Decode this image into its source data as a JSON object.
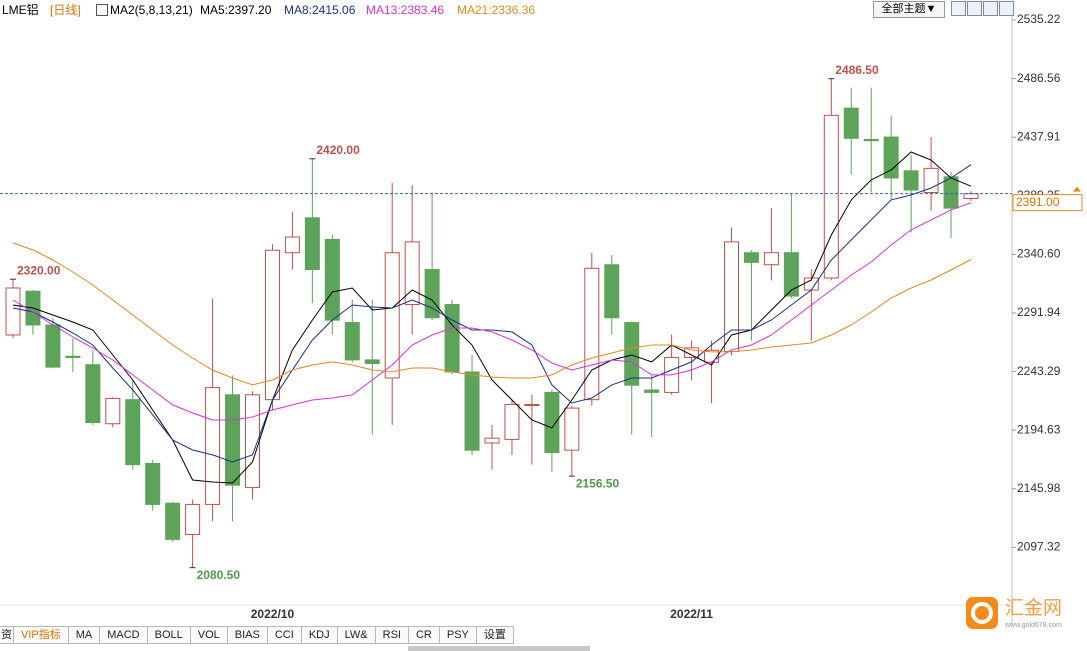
{
  "header": {
    "symbol": "LME铝",
    "period": "[日线]",
    "indicator": "MA2(5,8,13,21)",
    "theme_button": "全部主题▼"
  },
  "tabs": [
    "资",
    "VIP指标",
    "MA",
    "MACD",
    "BOLL",
    "VOL",
    "BIAS",
    "CCI",
    "KDJ",
    "LW&",
    "RSI",
    "CR",
    "PSY",
    "设置"
  ],
  "watermark": {
    "brand": "汇金网",
    "url": "www.gold678.com"
  },
  "chart_data": {
    "type": "candlestick",
    "up_color": "#c0504d",
    "down_color": "#5ea35a",
    "categories": [
      null,
      null,
      null,
      null,
      null,
      null,
      null,
      null,
      null,
      null,
      null,
      null,
      null,
      "2022/10",
      null,
      null,
      null,
      null,
      null,
      null,
      null,
      null,
      null,
      null,
      null,
      null,
      null,
      null,
      null,
      null,
      null,
      null,
      null,
      null,
      "2022/11",
      null,
      null,
      null,
      null,
      null,
      null,
      null,
      null,
      null,
      null,
      null,
      null,
      null,
      null
    ],
    "open": [
      2273.7,
      2310,
      2282,
      2256,
      2249,
      2200,
      2220,
      2167,
      2134,
      2108,
      2133,
      2224,
      2147,
      2220,
      2342,
      2371,
      2353,
      2284,
      2253,
      2238,
      2299,
      2328,
      2299,
      2243,
      2184,
      2187,
      2216,
      2226,
      2178,
      2220,
      2332,
      2284,
      2228,
      2226,
      2255,
      2251,
      2260,
      2342,
      2332,
      2342,
      2311,
      2321,
      2462,
      2436,
      2438,
      2410,
      2392,
      2405,
      2387
    ],
    "high": [
      2320,
      2311,
      2288,
      2271,
      2261,
      2222,
      2236,
      2170,
      2135,
      2137,
      2304,
      2240,
      2227,
      2349,
      2376,
      2420,
      2357,
      2303,
      2303,
      2400,
      2398,
      2392,
      2303,
      2257,
      2199,
      2220,
      2224,
      2228,
      2215,
      2342,
      2340,
      2285,
      2240,
      2274,
      2269,
      2269,
      2363,
      2344,
      2379,
      2391,
      2328,
      2486.5,
      2479,
      2479,
      2456,
      2423,
      2438,
      2409,
      2393
    ],
    "low": [
      2271,
      2274,
      2246,
      2243,
      2199,
      2197,
      2162,
      2128,
      2102,
      2080.5,
      2119,
      2119,
      2137,
      2211,
      2328,
      2300,
      2274,
      2251,
      2191,
      2199,
      2274,
      2286,
      2241,
      2174,
      2162,
      2174,
      2166,
      2160,
      2156.5,
      2215,
      2274,
      2191,
      2189,
      2224,
      2236,
      2217,
      2257,
      2269,
      2319,
      2304,
      2269,
      2319,
      2407,
      2392,
      2386,
      2359,
      2377,
      2354,
      2385
    ],
    "close": [
      2312.7,
      2282,
      2247,
      2255,
      2201,
      2221,
      2166,
      2133,
      2104,
      2133,
      2230,
      2149,
      2224,
      2344,
      2355,
      2328,
      2286,
      2253,
      2250,
      2342,
      2351,
      2288,
      2243,
      2178,
      2188,
      2216,
      2216,
      2176,
      2213,
      2329,
      2288,
      2232,
      2226,
      2255,
      2263,
      2261,
      2351,
      2334,
      2342,
      2306,
      2321,
      2456,
      2437,
      2435,
      2404,
      2394,
      2412,
      2379,
      2391
    ],
    "series": [
      {
        "name": "MA5:2397.20",
        "color": "#000000",
        "values": [
          2298.6,
          2296.1,
          2290.3,
          2284.5,
          2277.8,
          2257.1,
          2236.3,
          2211.4,
          2186.5,
          2153.3,
          2151.6,
          2150.8,
          2168.2,
          2219.7,
          2261.2,
          2286.1,
          2309.4,
          2312.7,
          2294.4,
          2296.1,
          2311.0,
          2302.7,
          2282.0,
          2265.4,
          2236.3,
          2219.7,
          2203.1,
          2196.5,
          2219.7,
          2244.6,
          2252.9,
          2257.1,
          2251.3,
          2265.4,
          2257.1,
          2248.8,
          2273.7,
          2277.8,
          2294.4,
          2311.0,
          2319.3,
          2356.7,
          2385.8,
          2402.4,
          2410.7,
          2425.6,
          2419.0,
          2404.0,
          2397.2
        ]
      },
      {
        "name": "MA8:2415.06",
        "color": "#1f2f86",
        "values": [
          2296.1,
          2292.8,
          2284.5,
          2275.3,
          2265.4,
          2246.3,
          2228.0,
          2207.3,
          2186.5,
          2178.2,
          2174.1,
          2168.2,
          2174.1,
          2219.7,
          2244.6,
          2269.5,
          2286.1,
          2298.6,
          2296.9,
          2296.1,
          2302.7,
          2296.1,
          2286.1,
          2277.8,
          2277.8,
          2276.2,
          2265.4,
          2232.2,
          2217.2,
          2221.4,
          2232.2,
          2238.0,
          2238.0,
          2244.6,
          2251.3,
          2265.4,
          2277.8,
          2277.8,
          2286.1,
          2298.6,
          2311.0,
          2335.9,
          2352.6,
          2369.2,
          2385.8,
          2389.9,
          2395.7,
          2404.0,
          2415.06
        ]
      },
      {
        "name": "MA13:2383.46",
        "color": "#d633d6",
        "values": [
          2302.7,
          2292.8,
          2282.0,
          2272.0,
          2262.9,
          2252.9,
          2240.5,
          2228.0,
          2215.6,
          2208.9,
          2203.1,
          2203.1,
          2205.6,
          2211.4,
          2215.6,
          2219.7,
          2221.4,
          2223.9,
          2236.3,
          2248.8,
          2265.4,
          2273.7,
          2279.5,
          2279.5,
          2276.2,
          2269.5,
          2261.2,
          2250.4,
          2244.6,
          2248.8,
          2252.9,
          2251.3,
          2240.5,
          2240.5,
          2244.6,
          2251.3,
          2261.2,
          2265.4,
          2273.7,
          2286.1,
          2298.6,
          2311.0,
          2323.5,
          2334.3,
          2348.4,
          2360.9,
          2369.2,
          2377.5,
          2383.46
        ]
      },
      {
        "name": "MA21:2336.36",
        "color": "#e08a1e",
        "values": [
          2350.1,
          2344.2,
          2335.9,
          2326.0,
          2315.2,
          2302.7,
          2290.3,
          2277.8,
          2265.4,
          2254.6,
          2244.6,
          2238.0,
          2232.2,
          2236.3,
          2244.6,
          2248.8,
          2251.3,
          2248.8,
          2244.6,
          2243.0,
          2246.3,
          2246.3,
          2243.0,
          2240.5,
          2238.8,
          2238.0,
          2238.0,
          2240.5,
          2248.8,
          2254.6,
          2258.7,
          2262.9,
          2265.4,
          2265.4,
          2261.2,
          2259.6,
          2259.6,
          2261.2,
          2263.7,
          2265.4,
          2267.0,
          2273.7,
          2282.0,
          2292.8,
          2304.4,
          2312.7,
          2319.3,
          2327.6,
          2336.36
        ]
      }
    ],
    "annotations": [
      {
        "label": "2320.00",
        "value": 2320
      },
      {
        "label": "2420.00",
        "value": 2420
      },
      {
        "label": "2486.50",
        "value": 2486.5
      },
      {
        "label": "2080.50",
        "value": 2080.5
      },
      {
        "label": "2156.50",
        "value": 2156.5
      }
    ],
    "last_price": {
      "value": 2391,
      "label": "2391.00"
    },
    "ylim": [
      2049.5,
      2551.8
    ],
    "yticks": [
      2535.22,
      2486.56,
      2437.91,
      2389.25,
      {
        "value": 2340.6,
        "label": "2340.60"
      },
      2291.94,
      2243.29,
      2194.63,
      2145.98,
      2097.32
    ],
    "grid": false
  }
}
